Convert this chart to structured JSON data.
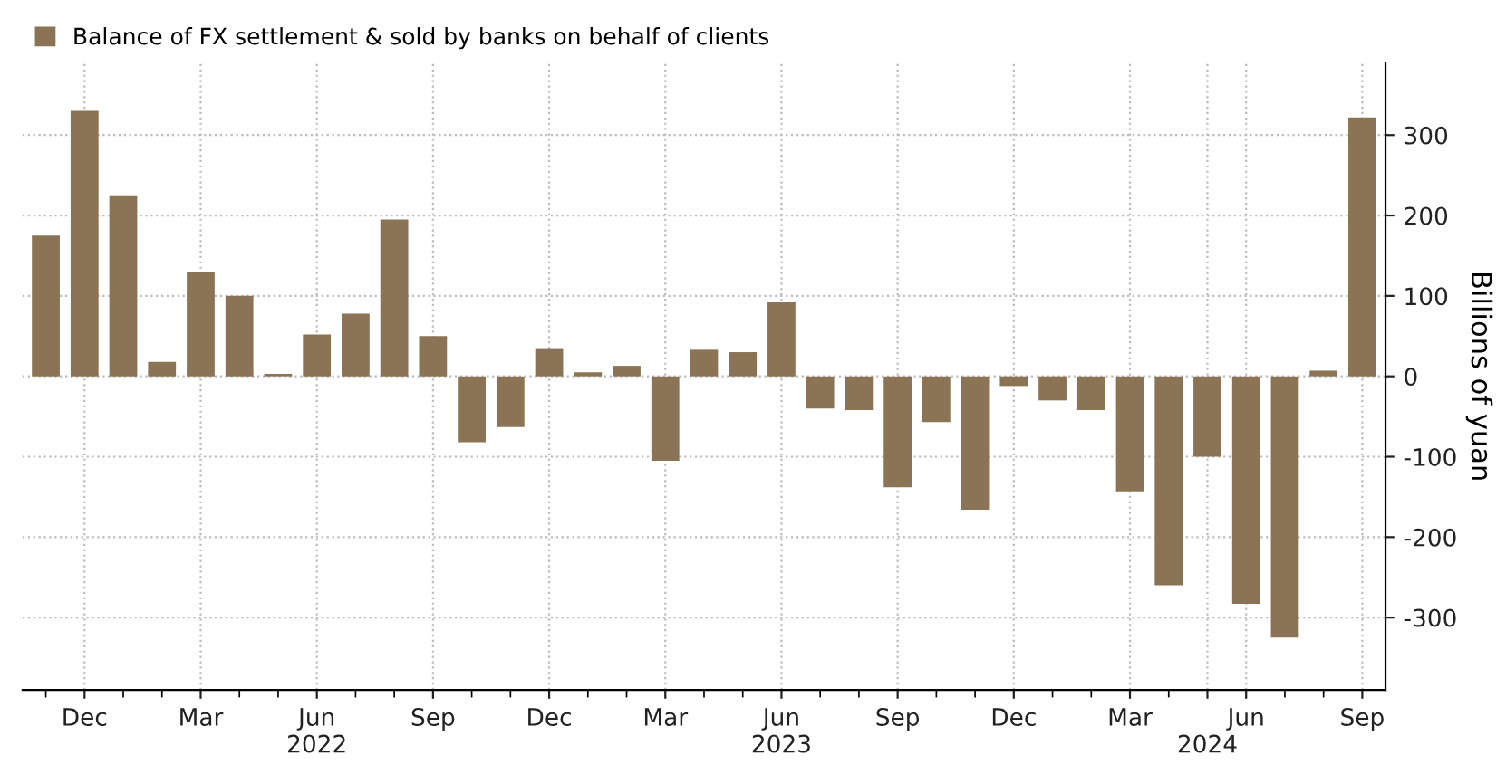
{
  "chart_data": {
    "type": "bar",
    "categories": [
      null,
      "Dec",
      null,
      null,
      "Mar",
      null,
      null,
      "Jun\n2022",
      null,
      null,
      "Sep",
      null,
      null,
      "Dec",
      null,
      null,
      "Mar",
      null,
      null,
      "Jun\n2023",
      null,
      null,
      "Sep",
      null,
      null,
      "Dec",
      null,
      null,
      "Mar",
      null,
      "\n2024",
      "Jun",
      null,
      null,
      "Sep"
    ],
    "series": [
      {
        "name": "Balance of FX settlement & sold by banks on behalf of clients",
        "color": "#8b7355",
        "values": [
          175,
          330,
          225,
          18,
          130,
          100,
          3,
          52,
          78,
          195,
          50,
          -82,
          -63,
          35,
          5,
          13,
          -105,
          33,
          30,
          92,
          -40,
          -42,
          -138,
          -57,
          -166,
          -12,
          -30,
          -42,
          -143,
          -260,
          -100,
          -283,
          -325,
          7,
          322
        ]
      }
    ],
    "ylabel": "Billions of yuan",
    "ylim": [
      -390,
      390
    ],
    "yticks": [
      -300,
      -200,
      -100,
      0,
      100,
      200,
      300
    ],
    "grid": true,
    "legend": "top left"
  }
}
